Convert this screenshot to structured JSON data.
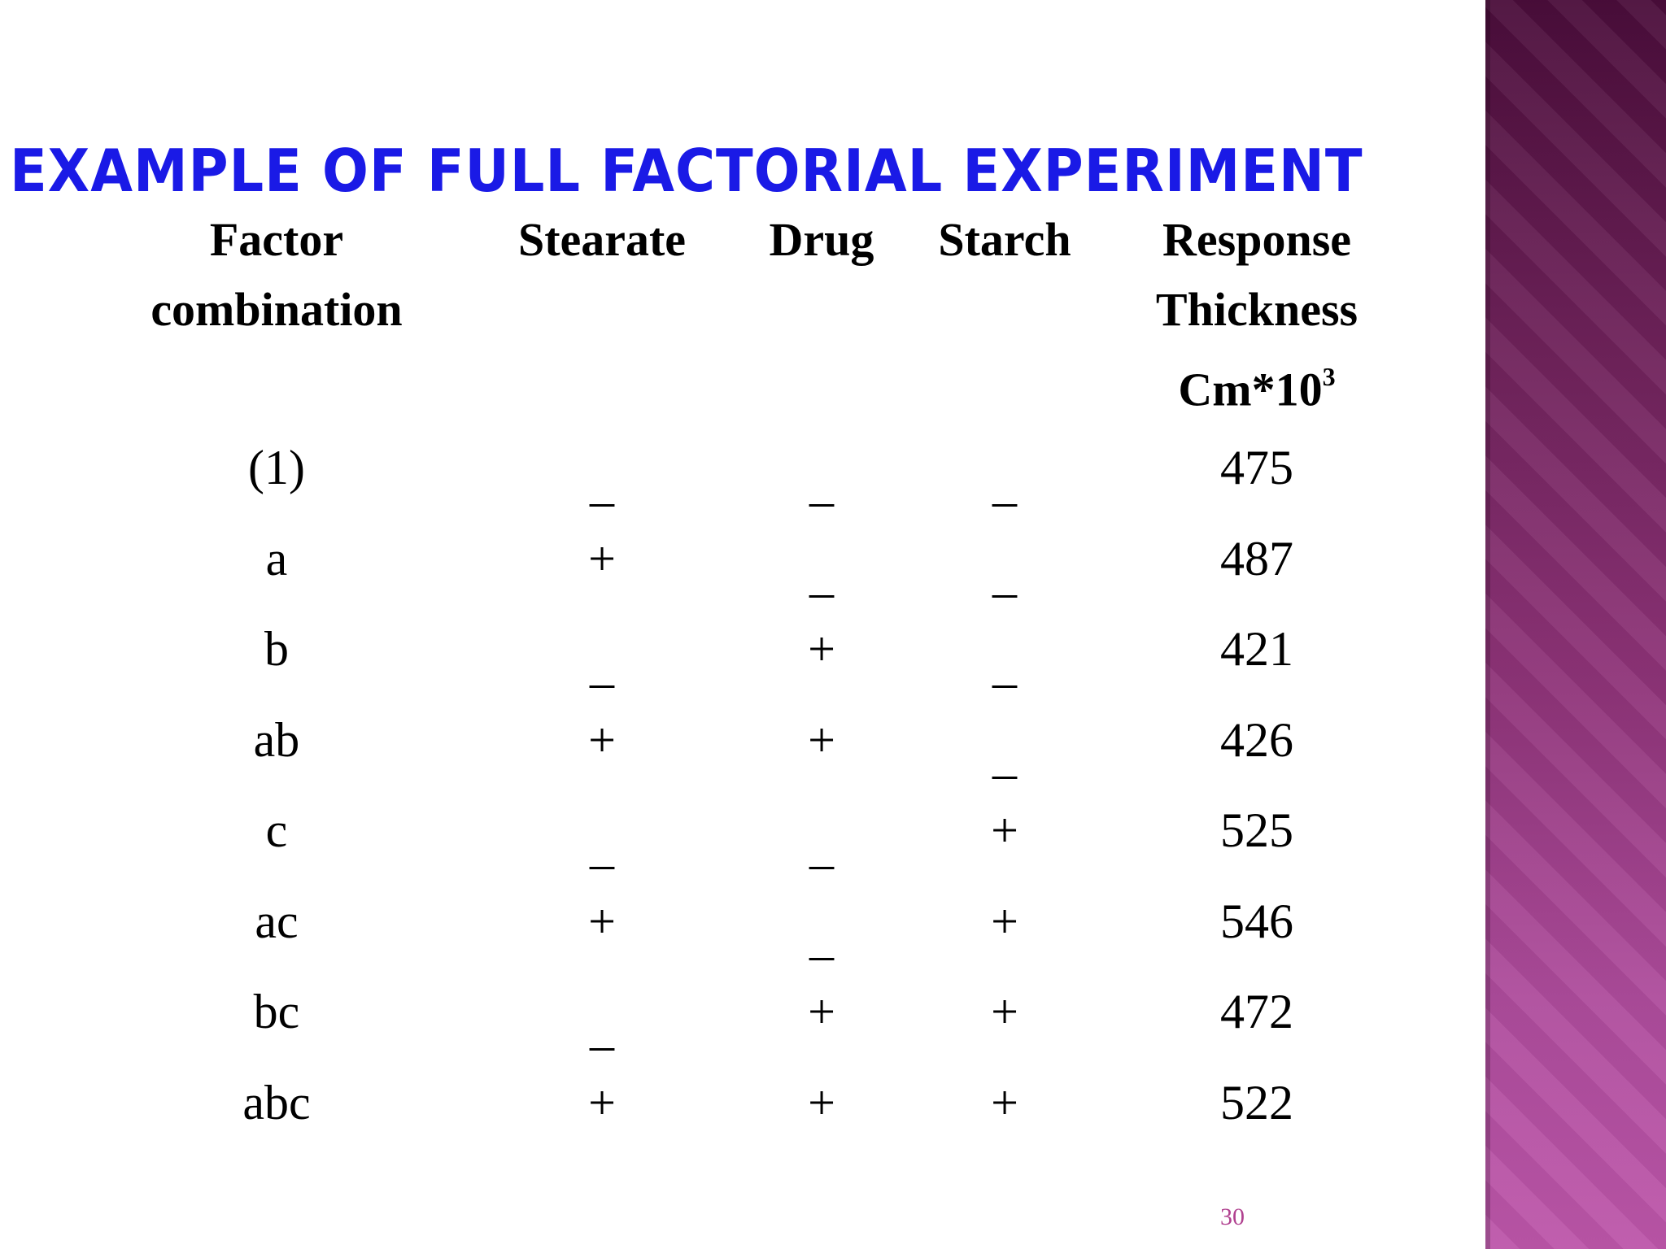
{
  "title": "EXAMPLE OF FULL FACTORIAL EXPERIMENT",
  "headers": {
    "factor_line1": "Factor",
    "factor_line2": "combination",
    "stearate": "Stearate",
    "drug": "Drug",
    "starch": "Starch",
    "response_line1": "Response",
    "response_line2": "Thickness",
    "response_line3_base": "Cm*10",
    "response_line3_exp": "3"
  },
  "rows": [
    {
      "combo": "(1)",
      "stearate": "_",
      "drug": "_",
      "starch": "_",
      "response": "475"
    },
    {
      "combo": "a",
      "stearate": "+",
      "drug": "_",
      "starch": "_",
      "response": "487"
    },
    {
      "combo": "b",
      "stearate": "_",
      "drug": "+",
      "starch": "_",
      "response": "421"
    },
    {
      "combo": "ab",
      "stearate": "+",
      "drug": "+",
      "starch": "_",
      "response": "426"
    },
    {
      "combo": "c",
      "stearate": "_",
      "drug": "_",
      "starch": "+",
      "response": "525"
    },
    {
      "combo": "ac",
      "stearate": "+",
      "drug": "_",
      "starch": "+",
      "response": "546"
    },
    {
      "combo": "bc",
      "stearate": "_",
      "drug": "+",
      "starch": "+",
      "response": "472"
    },
    {
      "combo": "abc",
      "stearate": "+",
      "drug": "+",
      "starch": "+",
      "response": "522"
    }
  ],
  "page_number": "30",
  "colors": {
    "title": "#1a1ae6",
    "page_number": "#b0408f",
    "side_band": "#8f3479"
  }
}
